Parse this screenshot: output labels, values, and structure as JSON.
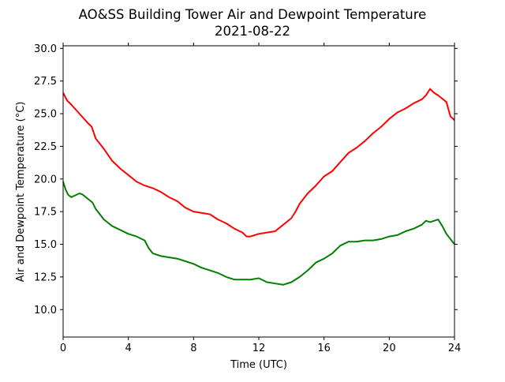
{
  "chart_data": {
    "type": "line",
    "title": "AO&SS Building Tower Air and Dewpoint Temperature",
    "subtitle": "2021-08-22",
    "xlabel": "Time (UTC)",
    "ylabel": "Air and Dewpoint Temperature (°C)",
    "xlim": [
      0,
      24
    ],
    "ylim": [
      7.9,
      30.2
    ],
    "xticks": [
      0,
      4,
      8,
      12,
      16,
      20,
      24
    ],
    "xtick_labels": [
      "0",
      "4",
      "8",
      "12",
      "16",
      "20",
      "24"
    ],
    "yticks": [
      10.0,
      12.5,
      15.0,
      17.5,
      20.0,
      22.5,
      25.0,
      27.5,
      30.0
    ],
    "ytick_labels": [
      "10.0",
      "12.5",
      "15.0",
      "17.5",
      "20.0",
      "22.5",
      "25.0",
      "27.5",
      "30.0"
    ],
    "grid": false,
    "series": [
      {
        "color": "#ff0000",
        "x": [
          0,
          0.25,
          0.5,
          1,
          1.5,
          1.75,
          2,
          2.5,
          3,
          3.5,
          4,
          4.5,
          5,
          5.5,
          6,
          6.5,
          7,
          7.5,
          8,
          8.5,
          9,
          9.5,
          10,
          10.5,
          11,
          11.25,
          11.5,
          12,
          12.5,
          13,
          13.5,
          14,
          14.25,
          14.5,
          15,
          15.5,
          16,
          16.5,
          17,
          17.5,
          18,
          18.5,
          19,
          19.5,
          20,
          20.5,
          21,
          21.5,
          22,
          22.25,
          22.5,
          22.75,
          23,
          23.5,
          23.75,
          24
        ],
        "y": [
          26.6,
          26.0,
          25.7,
          25.0,
          24.3,
          24.0,
          23.1,
          22.3,
          21.4,
          20.8,
          20.3,
          19.8,
          19.5,
          19.3,
          19.0,
          18.6,
          18.3,
          17.8,
          17.5,
          17.4,
          17.3,
          16.9,
          16.6,
          16.2,
          15.9,
          15.6,
          15.6,
          15.8,
          15.9,
          16.0,
          16.5,
          17.0,
          17.5,
          18.1,
          18.9,
          19.5,
          20.2,
          20.6,
          21.3,
          22.0,
          22.4,
          22.9,
          23.5,
          24.0,
          24.6,
          25.1,
          25.4,
          25.8,
          26.1,
          26.4,
          26.9,
          26.6,
          26.4,
          25.9,
          24.8,
          24.5
        ]
      },
      {
        "color": "#008000",
        "x": [
          0,
          0.15,
          0.3,
          0.5,
          1,
          1.2,
          1.5,
          1.8,
          2,
          2.5,
          3,
          3.5,
          4,
          4.5,
          5,
          5.25,
          5.5,
          6,
          6.5,
          7,
          7.5,
          8,
          8.5,
          9,
          9.5,
          10,
          10.5,
          11,
          11.5,
          12,
          12.5,
          13,
          13.5,
          14,
          14.5,
          15,
          15.5,
          16,
          16.5,
          17,
          17.5,
          18,
          18.5,
          19,
          19.5,
          20,
          20.5,
          21,
          21.5,
          22,
          22.25,
          22.5,
          23,
          23.25,
          23.5,
          24
        ],
        "y": [
          19.8,
          19.2,
          18.8,
          18.6,
          18.9,
          18.8,
          18.5,
          18.2,
          17.7,
          16.9,
          16.4,
          16.1,
          15.8,
          15.6,
          15.3,
          14.7,
          14.3,
          14.1,
          14.0,
          13.9,
          13.7,
          13.5,
          13.2,
          13.0,
          12.8,
          12.5,
          12.3,
          12.3,
          12.3,
          12.4,
          12.1,
          12.0,
          11.9,
          12.1,
          12.5,
          13.0,
          13.6,
          13.9,
          14.3,
          14.9,
          15.2,
          15.2,
          15.3,
          15.3,
          15.4,
          15.6,
          15.7,
          16.0,
          16.2,
          16.5,
          16.8,
          16.7,
          16.9,
          16.4,
          15.8,
          15.0
        ]
      }
    ]
  }
}
